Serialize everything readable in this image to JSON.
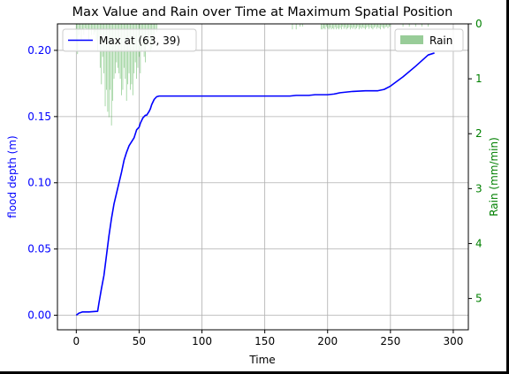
{
  "chart_data": {
    "type": "line",
    "title": "Max Value and Rain over Time at Maximum Spatial Position",
    "xlabel": "Time",
    "ylabel": "flood depth (m)",
    "ylabel_right": "Rain (mm/min)",
    "xlim": [
      -15,
      312
    ],
    "ylim": [
      -0.011,
      0.22
    ],
    "ylim_right": [
      5.57,
      0
    ],
    "right_axis_inverted": true,
    "grid": true,
    "x_ticks": [
      0,
      50,
      100,
      150,
      200,
      250,
      300
    ],
    "x_tick_labels": [
      "0",
      "50",
      "100",
      "150",
      "200",
      "250",
      "300"
    ],
    "y_ticks": [
      0.0,
      0.05,
      0.1,
      0.15,
      0.2
    ],
    "y_tick_labels": [
      "0.00",
      "0.05",
      "0.10",
      "0.15",
      "0.20"
    ],
    "y_right_ticks": [
      0,
      1,
      2,
      3,
      4,
      5
    ],
    "y_right_tick_labels": [
      "0",
      "1",
      "2",
      "3",
      "4",
      "5"
    ],
    "series": [
      {
        "name": "Max at (63, 39)",
        "kind": "line",
        "axis": "left",
        "color": "#0000ff",
        "x": [
          0,
          2,
          5,
          10,
          17,
          18,
          20,
          22,
          24,
          26,
          28,
          30,
          32,
          34,
          36,
          38,
          40,
          42,
          44,
          46,
          48,
          50,
          51,
          52,
          53,
          54,
          55,
          56,
          58,
          59,
          60,
          61,
          62,
          63,
          64,
          66,
          70,
          80,
          100,
          120,
          150,
          170,
          175,
          180,
          185,
          190,
          200,
          205,
          210,
          215,
          220,
          230,
          240,
          245,
          250,
          260,
          270,
          280,
          285
        ],
        "y": [
          0.0,
          0.0015,
          0.0025,
          0.0025,
          0.003,
          0.009,
          0.02,
          0.03,
          0.045,
          0.06,
          0.073,
          0.084,
          0.092,
          0.1,
          0.108,
          0.117,
          0.123,
          0.128,
          0.131,
          0.134,
          0.14,
          0.142,
          0.145,
          0.147,
          0.149,
          0.15,
          0.151,
          0.151,
          0.154,
          0.156,
          0.159,
          0.161,
          0.163,
          0.164,
          0.165,
          0.1655,
          0.1655,
          0.1655,
          0.1655,
          0.1655,
          0.1655,
          0.1655,
          0.166,
          0.166,
          0.166,
          0.1665,
          0.1665,
          0.167,
          0.168,
          0.1685,
          0.169,
          0.1695,
          0.1695,
          0.1705,
          0.173,
          0.18,
          0.188,
          0.1965,
          0.198
        ]
      },
      {
        "name": "Rain",
        "kind": "bar",
        "axis": "right",
        "color": "#2ca02c",
        "legend_color": "#98cc98",
        "x": [
          0,
          1,
          2,
          3,
          4,
          5,
          6,
          7,
          8,
          9,
          10,
          11,
          12,
          13,
          14,
          15,
          16,
          17,
          18,
          19,
          20,
          21,
          22,
          23,
          24,
          25,
          26,
          27,
          28,
          29,
          30,
          31,
          32,
          33,
          34,
          35,
          36,
          37,
          38,
          39,
          40,
          41,
          42,
          43,
          44,
          45,
          46,
          47,
          48,
          49,
          50,
          51,
          52,
          53,
          54,
          55,
          56,
          57,
          58,
          59,
          60,
          61,
          62,
          63,
          64,
          172,
          175,
          178,
          180,
          195,
          196,
          197,
          198,
          199,
          200,
          201,
          202,
          203,
          204,
          205,
          206,
          207,
          208,
          209,
          210,
          211,
          212,
          213,
          214,
          215,
          216,
          217,
          218,
          219,
          220,
          221,
          222,
          223,
          224,
          225,
          226,
          227,
          228,
          229,
          230,
          231,
          232,
          233,
          234,
          235,
          236,
          237,
          238,
          239,
          240,
          241,
          242,
          243,
          244,
          245,
          246,
          247,
          248,
          249,
          250,
          260,
          265,
          270,
          275,
          280
        ],
        "values": [
          0.3,
          0.55,
          0.2,
          0.1,
          0.3,
          0.1,
          0.2,
          0.08,
          0.1,
          0.1,
          0.3,
          0.1,
          0.2,
          0.1,
          0.2,
          0.15,
          0.3,
          0.5,
          0.25,
          0.8,
          1.1,
          0.6,
          0.9,
          1.5,
          1.2,
          1.6,
          1.7,
          1.2,
          1.85,
          1.4,
          1.0,
          0.9,
          0.7,
          0.8,
          0.9,
          1.0,
          1.3,
          1.2,
          0.8,
          1.0,
          1.4,
          1.1,
          0.9,
          1.2,
          1.1,
          1.3,
          0.9,
          0.7,
          1.0,
          0.8,
          0.6,
          0.9,
          0.5,
          0.4,
          0.6,
          0.7,
          0.35,
          0.4,
          0.3,
          0.5,
          0.45,
          0.3,
          0.2,
          0.1,
          0.15,
          0.1,
          0.1,
          0.05,
          0.05,
          0.1,
          0.1,
          0.08,
          0.1,
          0.05,
          0.08,
          0.1,
          0.07,
          0.1,
          0.08,
          0.1,
          0.06,
          0.1,
          0.08,
          0.1,
          0.07,
          0.1,
          0.05,
          0.09,
          0.06,
          0.1,
          0.08,
          0.06,
          0.1,
          0.07,
          0.09,
          0.06,
          0.1,
          0.08,
          0.05,
          0.1,
          0.07,
          0.09,
          0.06,
          0.08,
          0.1,
          0.07,
          0.05,
          0.09,
          0.06,
          0.08,
          0.1,
          0.07,
          0.05,
          0.09,
          0.06,
          0.08,
          0.1,
          0.05,
          0.07,
          0.09,
          0.06,
          0.05,
          0.08,
          0.05,
          0.05,
          0.05,
          0.05,
          0.05,
          0.05,
          0.05
        ]
      }
    ],
    "legends": [
      {
        "position": "upper-left",
        "entries": [
          "Max at (63, 39)"
        ]
      },
      {
        "position": "upper-right",
        "entries": [
          "Rain"
        ]
      }
    ]
  },
  "colors": {
    "left_axis_text": "#0000ff",
    "right_axis_text": "#008000",
    "grid": "#b0b0b0",
    "line": "#0000ff",
    "rain_bar": "#2ca02c",
    "rain_legend": "#98cc98"
  }
}
